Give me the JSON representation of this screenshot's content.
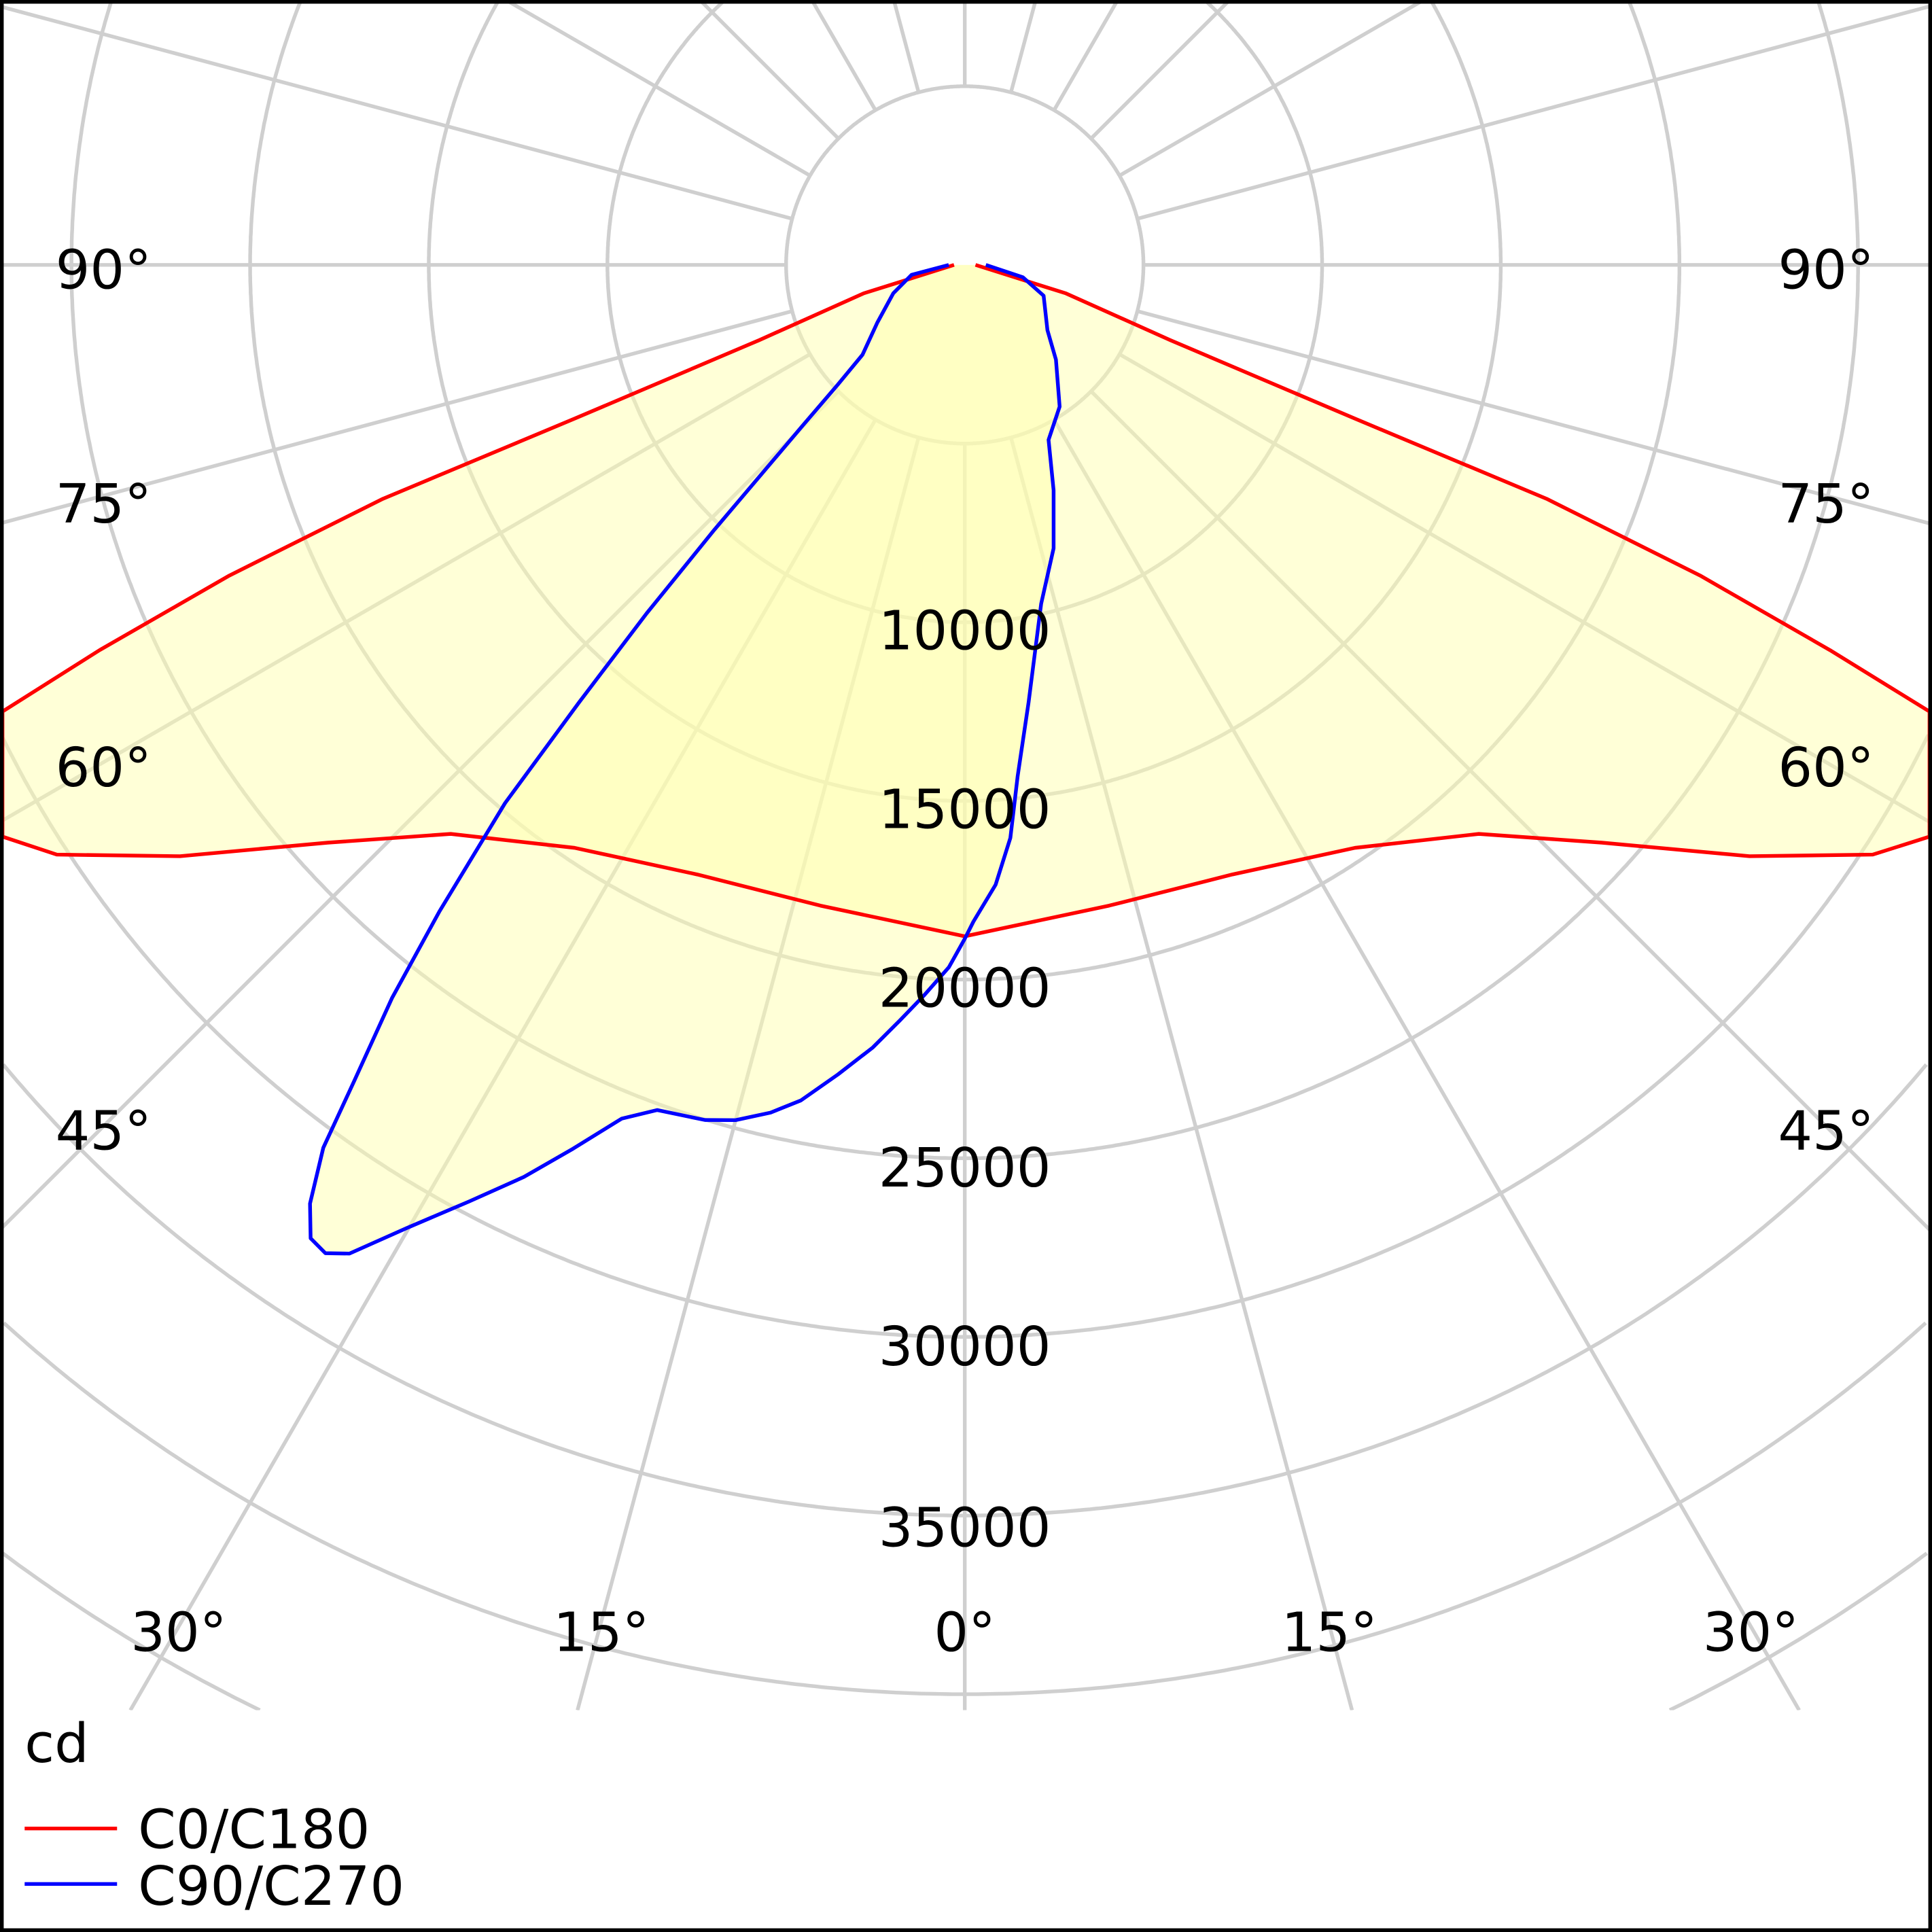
{
  "chart_data": {
    "type": "polar",
    "title": "",
    "unit_label": "cd",
    "radial_ticks": [
      10000,
      15000,
      20000,
      25000,
      30000,
      35000
    ],
    "radial_grid": [
      5000,
      10000,
      15000,
      20000,
      25000,
      30000,
      35000,
      40000,
      45000,
      50000,
      55000,
      60000
    ],
    "angle_labels_side": [
      "90°",
      "75°",
      "60°",
      "45°"
    ],
    "angle_labels_bottom": [
      "30°",
      "15°",
      "0°",
      "15°",
      "30°"
    ],
    "angular_grid_step_deg": 15,
    "legend_position": "bottom-left",
    "series": [
      {
        "name": "C0/C180",
        "color": "#ff0000",
        "symmetric": true,
        "points": [
          [
            0,
            18790
          ],
          [
            12.7,
            18380
          ],
          [
            23.7,
            18630
          ],
          [
            33.8,
            19630
          ],
          [
            42.1,
            21460
          ],
          [
            47.8,
            24070
          ],
          [
            53,
            27500
          ],
          [
            57,
            30300
          ],
          [
            60,
            32000
          ],
          [
            62.5,
            32300
          ],
          [
            64,
            31500
          ],
          [
            65.2,
            29800
          ],
          [
            66,
            26500
          ],
          [
            67.1,
            22340
          ],
          [
            68.1,
            17550
          ],
          [
            68.5,
            11750
          ],
          [
            69.9,
            6130
          ],
          [
            74.3,
            2940
          ],
          [
            75,
            2030
          ],
          [
            90,
            300
          ]
        ]
      },
      {
        "name": "C90/C270",
        "color": "#0000ff",
        "symmetric": false,
        "points": [
          [
            90,
            590
          ],
          [
            78,
            1660
          ],
          [
            68.7,
            2370
          ],
          [
            51.7,
            2950
          ],
          [
            43.9,
            3680
          ],
          [
            33.8,
            4770
          ],
          [
            25.6,
            5430
          ],
          [
            21.5,
            6780
          ],
          [
            17.4,
            8310
          ],
          [
            12.7,
            9720
          ],
          [
            8.3,
            12370
          ],
          [
            5.9,
            14390
          ],
          [
            4.55,
            16090
          ],
          [
            2.85,
            17370
          ],
          [
            0.75,
            18380
          ],
          [
            0,
            18860
          ],
          [
            -1.3,
            19660
          ],
          [
            -3.2,
            20480
          ],
          [
            -4.9,
            21220
          ],
          [
            -6.7,
            22050
          ],
          [
            -8.9,
            22930
          ],
          [
            -11.1,
            23830
          ],
          [
            -12.9,
            24340
          ],
          [
            -15,
            24780
          ],
          [
            -16.9,
            25010
          ],
          [
            -20,
            25170
          ],
          [
            -21.9,
            25750
          ],
          [
            -23.9,
            27050
          ],
          [
            -25.8,
            28350
          ],
          [
            -27.9,
            29660
          ],
          [
            -30.1,
            31160
          ],
          [
            -31.9,
            32590
          ],
          [
            -32.9,
            32940
          ],
          [
            -33.9,
            32820
          ],
          [
            -34.9,
            32030
          ],
          [
            -36,
            30540
          ],
          [
            -36.8,
            28530
          ],
          [
            -38,
            26040
          ],
          [
            -39.1,
            23310
          ],
          [
            -40.5,
            19810
          ],
          [
            -41.4,
            16320
          ],
          [
            -42.4,
            13200
          ],
          [
            -43.4,
            10200
          ],
          [
            -45.2,
            6460
          ],
          [
            -46.7,
            4880
          ],
          [
            -48.7,
            3810
          ],
          [
            -56.5,
            2940
          ],
          [
            -68.4,
            2150
          ],
          [
            -79.5,
            1510
          ],
          [
            -90,
            450
          ]
        ]
      }
    ],
    "fill_color": "#ffffb0"
  }
}
